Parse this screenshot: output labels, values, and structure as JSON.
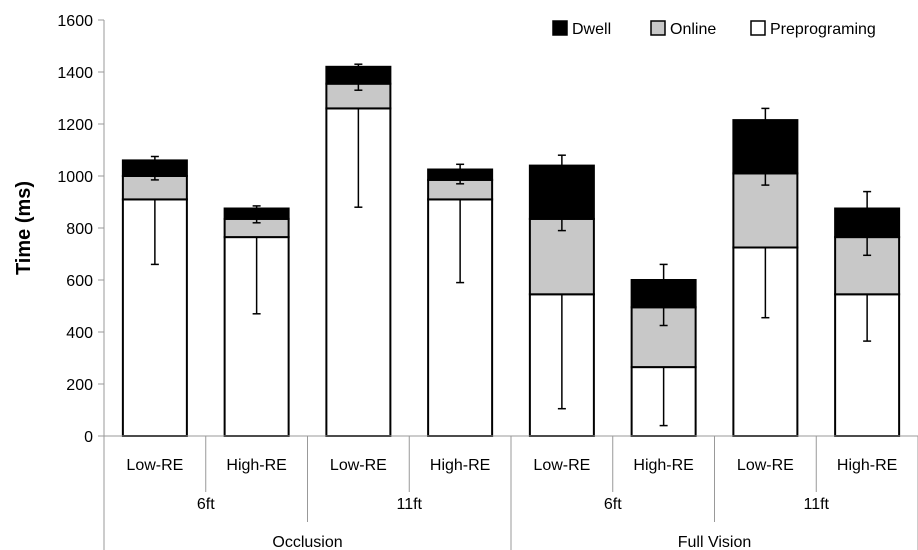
{
  "chart_data": {
    "type": "bar",
    "stacked": true,
    "ylabel": "Time (ms)",
    "ylim": [
      0,
      1600
    ],
    "yticks": [
      0,
      200,
      400,
      600,
      800,
      1000,
      1200,
      1400,
      1600
    ],
    "grid": false,
    "legend_position": "top-right",
    "categories": [
      "Low-RE",
      "High-RE",
      "Low-RE",
      "High-RE",
      "Low-RE",
      "High-RE",
      "Low-RE",
      "High-RE"
    ],
    "distance_groups": [
      {
        "label": "6ft"
      },
      {
        "label": "11ft"
      },
      {
        "label": "6ft"
      },
      {
        "label": "11ft"
      }
    ],
    "condition_groups": [
      {
        "label": "Occlusion"
      },
      {
        "label": "Full Vision"
      }
    ],
    "series": [
      {
        "name": "Preprograming",
        "color": "#ffffff",
        "values": [
          910,
          765,
          1260,
          910,
          545,
          265,
          725,
          545
        ],
        "error": [
          250,
          295,
          380,
          320,
          440,
          225,
          270,
          180
        ]
      },
      {
        "name": "Online",
        "color": "#c8c8c8",
        "values": [
          90,
          70,
          95,
          75,
          290,
          230,
          285,
          220
        ],
        "error": [
          15,
          15,
          25,
          15,
          45,
          70,
          45,
          70
        ]
      },
      {
        "name": "Dwell",
        "color": "#000000",
        "values": [
          60,
          40,
          65,
          40,
          205,
          105,
          205,
          110
        ],
        "error": [
          15,
          10,
          10,
          20,
          40,
          60,
          45,
          65
        ]
      }
    ],
    "legend_order": [
      "Dwell",
      "Online",
      "Preprograming"
    ]
  }
}
